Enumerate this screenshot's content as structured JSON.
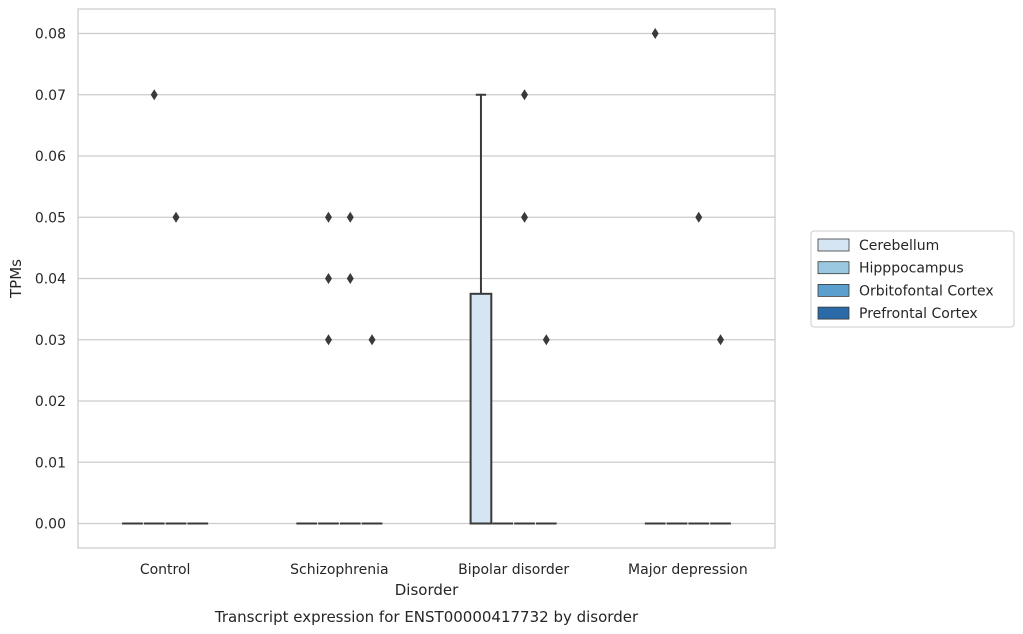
{
  "chart_data": {
    "type": "box",
    "caption": "Transcript expression for ENST00000417732 by disorder",
    "xlabel": "Disorder",
    "ylabel": "TPMs",
    "categories": [
      "Control",
      "Schizophrenia",
      "Bipolar disorder",
      "Major depression"
    ],
    "ylim": [
      -0.004,
      0.084
    ],
    "yticks": [
      0.0,
      0.01,
      0.02,
      0.03,
      0.04,
      0.05,
      0.06,
      0.07,
      0.08
    ],
    "ytick_labels": [
      "0.00",
      "0.01",
      "0.02",
      "0.03",
      "0.04",
      "0.05",
      "0.06",
      "0.07",
      "0.08"
    ],
    "grid": "horizontal",
    "legend_position": "right",
    "series": [
      {
        "name": "Cerebellum",
        "color": "#d6e5f4",
        "boxes": [
          {
            "q1": 0.0,
            "median": 0.0,
            "q3": 0.0,
            "whisker_low": 0.0,
            "whisker_high": 0.0,
            "outliers": []
          },
          {
            "q1": 0.0,
            "median": 0.0,
            "q3": 0.0,
            "whisker_low": 0.0,
            "whisker_high": 0.0,
            "outliers": []
          },
          {
            "q1": 0.0,
            "median": 0.0,
            "q3": 0.0375,
            "whisker_low": 0.0,
            "whisker_high": 0.07,
            "outliers": []
          },
          {
            "q1": 0.0,
            "median": 0.0,
            "q3": 0.0,
            "whisker_low": 0.0,
            "whisker_high": 0.0,
            "outliers": [
              0.08
            ]
          }
        ]
      },
      {
        "name": "Hipppocampus",
        "color": "#9ac8e0",
        "boxes": [
          {
            "q1": 0.0,
            "median": 0.0,
            "q3": 0.0,
            "whisker_low": 0.0,
            "whisker_high": 0.0,
            "outliers": [
              0.07
            ]
          },
          {
            "q1": 0.0,
            "median": 0.0,
            "q3": 0.0,
            "whisker_low": 0.0,
            "whisker_high": 0.0,
            "outliers": [
              0.05,
              0.04,
              0.03
            ]
          },
          {
            "q1": 0.0,
            "median": 0.0,
            "q3": 0.0,
            "whisker_low": 0.0,
            "whisker_high": 0.0,
            "outliers": []
          },
          {
            "q1": 0.0,
            "median": 0.0,
            "q3": 0.0,
            "whisker_low": 0.0,
            "whisker_high": 0.0,
            "outliers": []
          }
        ]
      },
      {
        "name": "Orbitofontal Cortex",
        "color": "#5a9fcd",
        "boxes": [
          {
            "q1": 0.0,
            "median": 0.0,
            "q3": 0.0,
            "whisker_low": 0.0,
            "whisker_high": 0.0,
            "outliers": [
              0.05
            ]
          },
          {
            "q1": 0.0,
            "median": 0.0,
            "q3": 0.0,
            "whisker_low": 0.0,
            "whisker_high": 0.0,
            "outliers": [
              0.05,
              0.04
            ]
          },
          {
            "q1": 0.0,
            "median": 0.0,
            "q3": 0.0,
            "whisker_low": 0.0,
            "whisker_high": 0.0,
            "outliers": [
              0.07,
              0.05
            ]
          },
          {
            "q1": 0.0,
            "median": 0.0,
            "q3": 0.0,
            "whisker_low": 0.0,
            "whisker_high": 0.0,
            "outliers": [
              0.05
            ]
          }
        ]
      },
      {
        "name": "Prefrontal Cortex",
        "color": "#2b6aa8",
        "boxes": [
          {
            "q1": 0.0,
            "median": 0.0,
            "q3": 0.0,
            "whisker_low": 0.0,
            "whisker_high": 0.0,
            "outliers": []
          },
          {
            "q1": 0.0,
            "median": 0.0,
            "q3": 0.0,
            "whisker_low": 0.0,
            "whisker_high": 0.0,
            "outliers": [
              0.03
            ]
          },
          {
            "q1": 0.0,
            "median": 0.0,
            "q3": 0.0,
            "whisker_low": 0.0,
            "whisker_high": 0.0,
            "outliers": [
              0.03
            ]
          },
          {
            "q1": 0.0,
            "median": 0.0,
            "q3": 0.0,
            "whisker_low": 0.0,
            "whisker_high": 0.0,
            "outliers": [
              0.03
            ]
          }
        ]
      }
    ]
  }
}
